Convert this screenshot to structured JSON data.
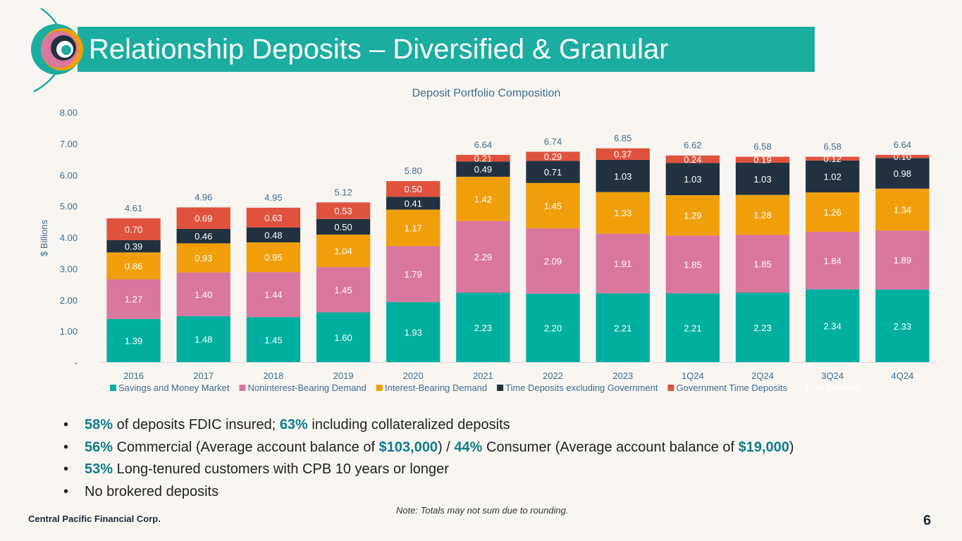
{
  "page": {
    "title": "Relationship Deposits – Diversified & Granular",
    "footer": "Central Pacific Financial Corp.",
    "page_number": "6",
    "note": "Note: Totals may not sum due to rounding."
  },
  "bullets": [
    [
      {
        "t": "58%",
        "hl": true
      },
      {
        "t": " of deposits FDIC insured; ",
        "hl": false
      },
      {
        "t": "63%",
        "hl": true
      },
      {
        "t": " including collateralized deposits",
        "hl": false
      }
    ],
    [
      {
        "t": "56%",
        "hl": true
      },
      {
        "t": " Commercial (Average account balance of ",
        "hl": false
      },
      {
        "t": "$103,000",
        "hl": true
      },
      {
        "t": ") / ",
        "hl": false
      },
      {
        "t": "44%",
        "hl": true
      },
      {
        "t": " Consumer (Average account balance of ",
        "hl": false
      },
      {
        "t": "$19,000",
        "hl": true
      },
      {
        "t": ")",
        "hl": false
      }
    ],
    [
      {
        "t": "53%",
        "hl": true
      },
      {
        "t": " Long-tenured customers with CPB 10 years or longer",
        "hl": false
      }
    ],
    [
      {
        "t": "No brokered deposits",
        "hl": false
      }
    ]
  ],
  "chart_data": {
    "type": "bar",
    "stacked": true,
    "title": "Deposit Portfolio Composition",
    "ylabel": "$ Billions",
    "ylim": [
      0,
      8
    ],
    "yticks": [
      0,
      1,
      2,
      3,
      4,
      5,
      6,
      7,
      8
    ],
    "ytick_labels": [
      "-",
      "1.00",
      "2.00",
      "3.00",
      "4.00",
      "5.00",
      "6.00",
      "7.00",
      "8.00"
    ],
    "categories": [
      "2016",
      "2017",
      "2018",
      "2019",
      "2020",
      "2021",
      "2022",
      "2023",
      "1Q24",
      "2Q24",
      "3Q24",
      "4Q24"
    ],
    "series": [
      {
        "name": "Savings and Money Market",
        "color": "#00afa0",
        "label_color": "#ffffff",
        "values": [
          1.39,
          1.48,
          1.45,
          1.6,
          1.93,
          2.23,
          2.2,
          2.21,
          2.21,
          2.23,
          2.34,
          2.33
        ]
      },
      {
        "name": "Noninterest-Bearing Demand",
        "color": "#d9779f",
        "label_color": "#ffffff",
        "values": [
          1.27,
          1.4,
          1.44,
          1.45,
          1.79,
          2.29,
          2.09,
          1.91,
          1.85,
          1.85,
          1.84,
          1.89
        ]
      },
      {
        "name": "Interest-Bearing Demand",
        "color": "#f09f0b",
        "label_color": "#ffffff",
        "values": [
          0.86,
          0.93,
          0.95,
          1.04,
          1.17,
          1.42,
          1.45,
          1.33,
          1.29,
          1.28,
          1.26,
          1.34
        ]
      },
      {
        "name": "Time Deposits excluding Government",
        "color": "#22313f",
        "label_color": "#ffffff",
        "values": [
          0.39,
          0.46,
          0.48,
          0.5,
          0.41,
          0.49,
          0.71,
          1.03,
          1.03,
          1.03,
          1.02,
          0.98
        ]
      },
      {
        "name": "Government Time Deposits",
        "color": "#e0523e",
        "label_color": "#ffffff",
        "values": [
          0.7,
          0.69,
          0.63,
          0.53,
          0.5,
          0.21,
          0.29,
          0.37,
          0.24,
          0.19,
          0.12,
          0.1
        ]
      }
    ],
    "totals": [
      4.61,
      4.96,
      4.95,
      5.12,
      5.8,
      6.64,
      6.74,
      6.85,
      6.62,
      6.58,
      6.58,
      6.64
    ],
    "totals_legend_label": "Total Deposits",
    "legend_position": "bottom",
    "grid": false
  }
}
